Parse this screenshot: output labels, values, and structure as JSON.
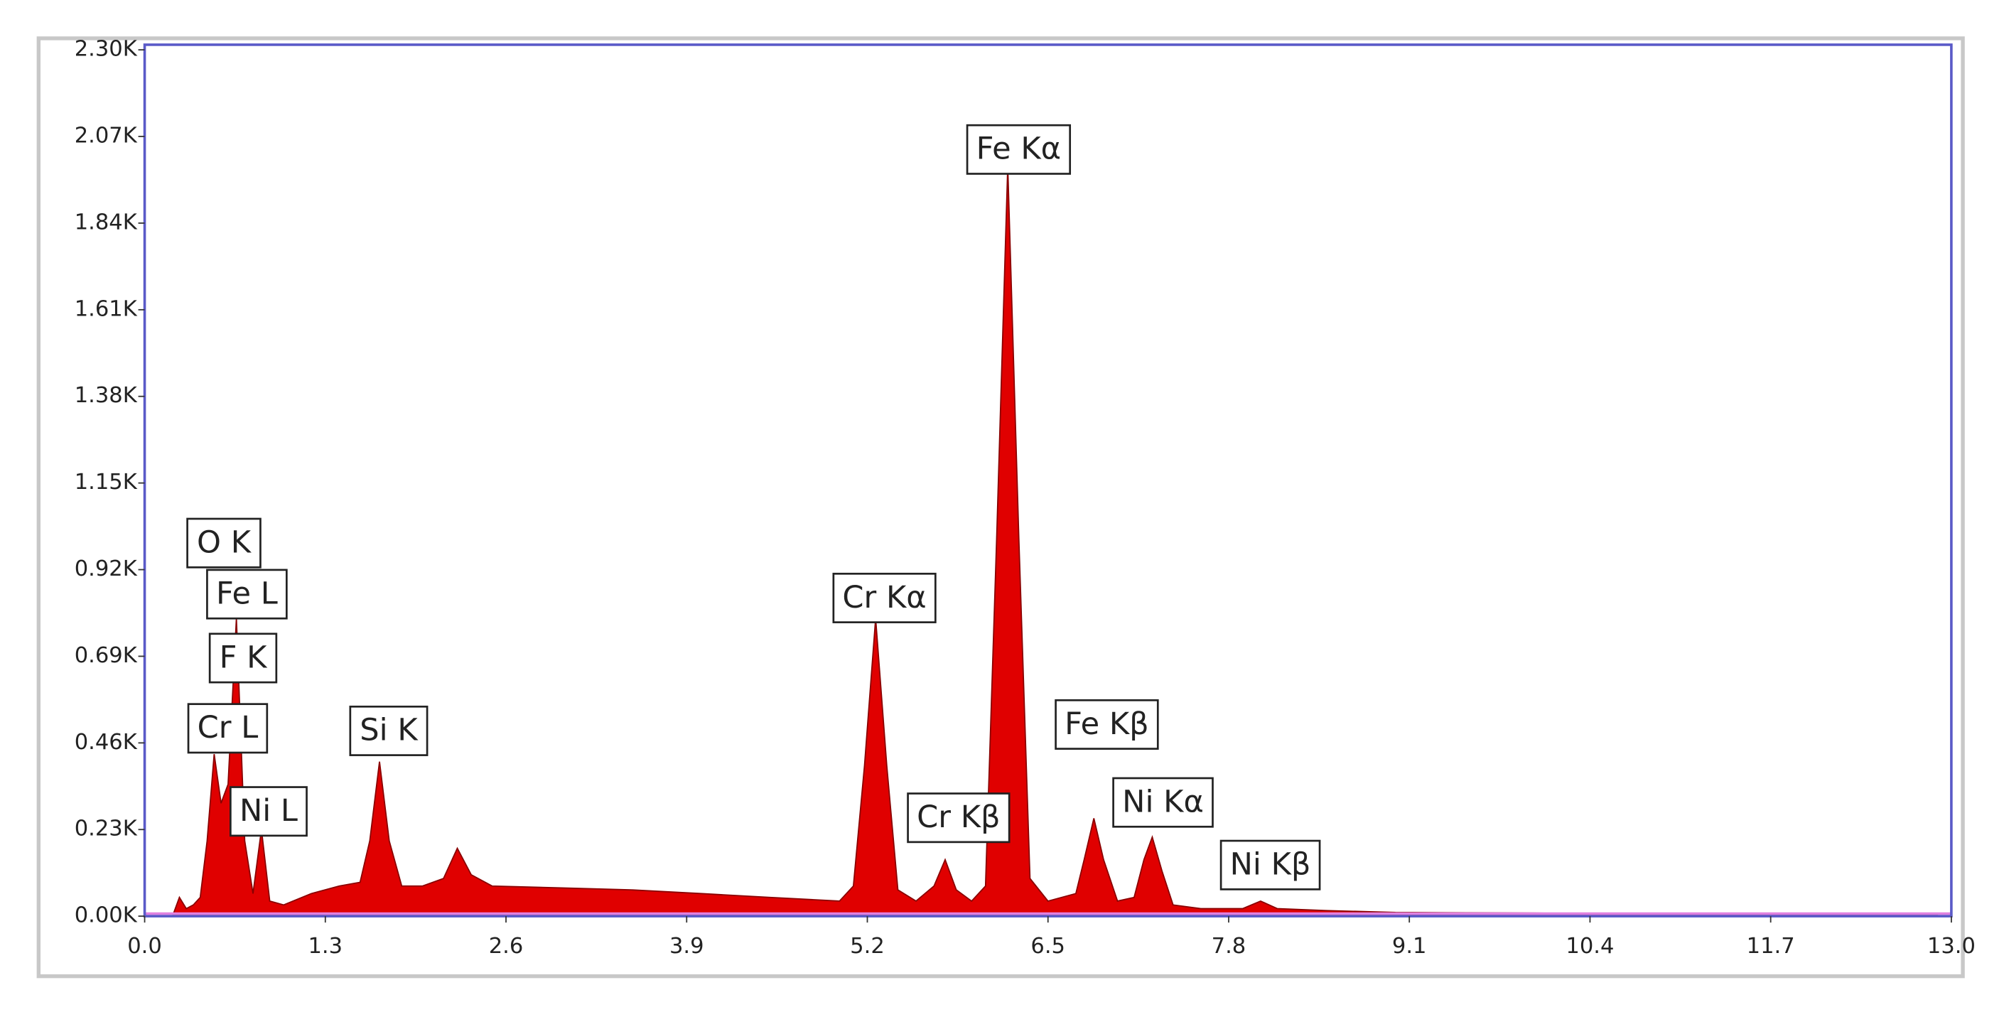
{
  "chart_data": {
    "type": "area",
    "x": [
      0.2,
      0.25,
      0.3,
      0.35,
      0.4,
      0.45,
      0.5,
      0.55,
      0.6,
      0.66,
      0.72,
      0.78,
      0.84,
      0.9,
      1.0,
      1.2,
      1.4,
      1.55,
      1.62,
      1.69,
      1.76,
      1.85,
      2.0,
      2.15,
      2.25,
      2.35,
      2.5,
      3.0,
      3.5,
      4.0,
      4.5,
      5.0,
      5.1,
      5.18,
      5.26,
      5.34,
      5.42,
      5.55,
      5.68,
      5.76,
      5.84,
      5.95,
      6.05,
      6.13,
      6.21,
      6.29,
      6.37,
      6.5,
      6.7,
      6.76,
      6.83,
      6.9,
      7.0,
      7.12,
      7.19,
      7.25,
      7.32,
      7.4,
      7.6,
      7.9,
      8.03,
      8.15,
      8.5,
      9.0,
      10.0,
      11.0,
      12.0,
      12.9
    ],
    "values": [
      0,
      0.05,
      0.02,
      0.03,
      0.05,
      0.2,
      0.43,
      0.3,
      0.35,
      0.79,
      0.2,
      0.06,
      0.23,
      0.04,
      0.03,
      0.06,
      0.08,
      0.09,
      0.2,
      0.41,
      0.2,
      0.08,
      0.08,
      0.1,
      0.18,
      0.11,
      0.08,
      0.075,
      0.07,
      0.06,
      0.05,
      0.04,
      0.08,
      0.4,
      0.79,
      0.4,
      0.07,
      0.04,
      0.08,
      0.15,
      0.07,
      0.04,
      0.08,
      1.0,
      1.99,
      1.0,
      0.1,
      0.04,
      0.06,
      0.15,
      0.26,
      0.15,
      0.04,
      0.05,
      0.15,
      0.21,
      0.12,
      0.03,
      0.02,
      0.02,
      0.04,
      0.02,
      0.015,
      0.01,
      0.008,
      0.005,
      0.004,
      0.003
    ],
    "color": "#e00000",
    "xlim": [
      0,
      13
    ],
    "xticks": [
      {
        "value": 0,
        "label": "0.0"
      },
      1.3,
      2.6,
      3.9,
      5.2,
      6.5,
      7.8,
      9.1,
      10.4,
      11.7,
      {
        "value": 13,
        "label": "13.0"
      }
    ],
    "ylim": [
      0,
      2.3
    ],
    "yticks": [
      {
        "value": 0,
        "label": "0.00K"
      },
      {
        "value": 0.23,
        "label": "0.23K"
      },
      {
        "value": 0.46,
        "label": "0.46K"
      },
      {
        "value": 0.69,
        "label": "0.69K"
      },
      {
        "value": 0.92,
        "label": "0.92K"
      },
      {
        "value": 1.15,
        "label": "1.15K"
      },
      {
        "value": 1.38,
        "label": "1.38K"
      },
      {
        "value": 1.61,
        "label": "1.61K"
      },
      {
        "value": 1.84,
        "label": "1.84K"
      },
      {
        "value": 2.07,
        "label": "2.07K"
      },
      {
        "value": 2.3,
        "label": "2.30K"
      }
    ],
    "annotations": [
      "O K",
      "Fe L",
      "F K",
      "Cr L",
      "Ni L",
      "Si K",
      "Cr Kα",
      "Cr Kβ",
      "Fe Kα",
      "Fe Kβ",
      "Ni Kα",
      "Ni Kβ"
    ]
  }
}
